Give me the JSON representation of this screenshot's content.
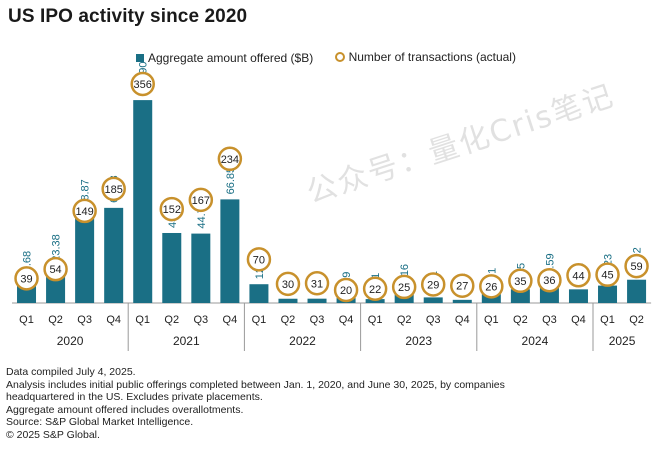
{
  "title": "US IPO activity since 2020",
  "colors": {
    "bar": "#1a6f85",
    "dot_border": "#c8912c",
    "axis": "#999999",
    "label_teal": "#1a6f85"
  },
  "chart_data": {
    "type": "bar",
    "title": "US IPO activity since 2020",
    "categories": [
      "Q1",
      "Q2",
      "Q3",
      "Q4",
      "Q1",
      "Q2",
      "Q3",
      "Q4",
      "Q1",
      "Q2",
      "Q3",
      "Q4",
      "Q1",
      "Q2",
      "Q3",
      "Q4",
      "Q1",
      "Q2",
      "Q3",
      "Q4",
      "Q1",
      "Q2"
    ],
    "years": [
      {
        "label": "2020",
        "start": 0,
        "end": 3
      },
      {
        "label": "2021",
        "start": 4,
        "end": 7
      },
      {
        "label": "2022",
        "start": 8,
        "end": 11
      },
      {
        "label": "2023",
        "start": 12,
        "end": 15
      },
      {
        "label": "2024",
        "start": 16,
        "end": 19
      },
      {
        "label": "2025",
        "start": 20,
        "end": 21
      }
    ],
    "series": [
      {
        "name": "Aggregate amount offered ($B)",
        "values": [
          12.68,
          23.38,
          58.87,
          61.38,
          130.9,
          45.17,
          44.78,
          66.85,
          12.12,
          2.75,
          2.79,
          3.19,
          2.51,
          8.16,
          3.61,
          2.04,
          5.71,
          8.85,
          11.59,
          8.81,
          11.23,
          15.02
        ],
        "labels": [
          "12.68",
          "23.38",
          "58.87",
          "61.38",
          "130.90",
          "45.17",
          "44.78",
          "66.85",
          "12.12",
          "2.75",
          "2.79",
          "3.19",
          "2.51",
          "8.16",
          "3.61",
          "2.04",
          "5.71",
          "8.85",
          "11.59",
          "8.81",
          "11.23",
          "15.02"
        ]
      },
      {
        "name": "Number of transactions (actual)",
        "values": [
          39,
          54,
          149,
          185,
          356,
          152,
          167,
          234,
          70,
          30,
          31,
          20,
          22,
          25,
          29,
          27,
          26,
          35,
          36,
          44,
          45,
          59
        ],
        "labels": [
          "39",
          "54",
          "149",
          "185",
          "356",
          "152",
          "167",
          "234",
          "70",
          "30",
          "31",
          "20",
          "22",
          "25",
          "29",
          "27",
          "26",
          "35",
          "36",
          "44",
          "45",
          "59"
        ]
      }
    ],
    "legend": "top"
  },
  "notes": [
    "Data compiled July 4, 2025.",
    "Analysis includes initial public offerings completed between Jan. 1, 2020, and June 30, 2025, by companies",
    "headquartered in the US. Excludes private placements.",
    "Aggregate amount offered includes overallotments.",
    "Source: S&P Global Market Intelligence.",
    "© 2025 S&P Global."
  ],
  "watermark": "公众号：量化Cris笔记"
}
